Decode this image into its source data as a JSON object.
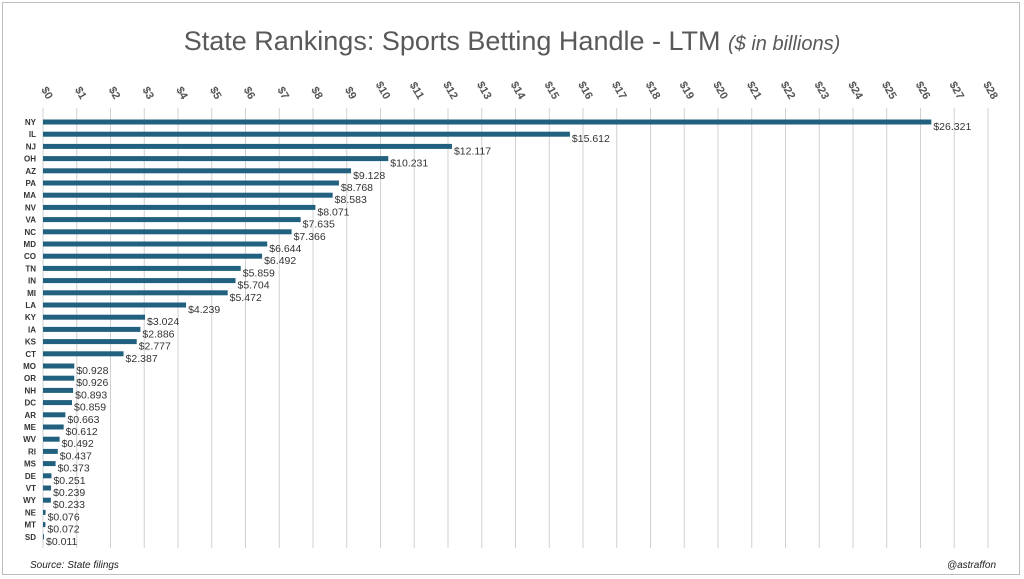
{
  "title": {
    "main": "State Rankings: Sports Betting Handle - LTM",
    "sub": "($ in billions)"
  },
  "footer": {
    "source": "Source: State filings",
    "handle": "@astraffon"
  },
  "colors": {
    "bar": "#21607e",
    "grid": "#d0d0d0"
  },
  "chart_data": {
    "type": "bar",
    "orientation": "horizontal",
    "title": "State Rankings: Sports Betting Handle - LTM ($ in billions)",
    "xlim": [
      0,
      28
    ],
    "xticks": [
      "$0",
      "$1",
      "$2",
      "$3",
      "$4",
      "$5",
      "$6",
      "$7",
      "$8",
      "$9",
      "$10",
      "$11",
      "$12",
      "$13",
      "$14",
      "$15",
      "$16",
      "$17",
      "$18",
      "$19",
      "$20",
      "$21",
      "$22",
      "$23",
      "$24",
      "$25",
      "$26",
      "$27",
      "$28"
    ],
    "xaxis_position": "top",
    "grid": true,
    "categories": [
      "NY",
      "IL",
      "NJ",
      "OH",
      "AZ",
      "PA",
      "MA",
      "NV",
      "VA",
      "NC",
      "MD",
      "CO",
      "TN",
      "IN",
      "MI",
      "LA",
      "KY",
      "IA",
      "KS",
      "CT",
      "MO",
      "OR",
      "NH",
      "DC",
      "AR",
      "ME",
      "WV",
      "RI",
      "MS",
      "DE",
      "VT",
      "WY",
      "NE",
      "MT",
      "SD"
    ],
    "values": [
      26.321,
      15.612,
      12.117,
      10.231,
      9.128,
      8.768,
      8.583,
      8.071,
      7.635,
      7.366,
      6.644,
      6.492,
      5.859,
      5.704,
      5.472,
      4.239,
      3.024,
      2.886,
      2.777,
      2.387,
      0.928,
      0.926,
      0.893,
      0.859,
      0.663,
      0.612,
      0.492,
      0.437,
      0.373,
      0.251,
      0.239,
      0.233,
      0.076,
      0.072,
      0.011
    ],
    "labels": [
      "$26.321",
      "$15.612",
      "$12.117",
      "$10.231",
      "$9.128",
      "$8.768",
      "$8.583",
      "$8.071",
      "$7.635",
      "$7.366",
      "$6.644",
      "$6.492",
      "$5.859",
      "$5.704",
      "$5.472",
      "$4.239",
      "$3.024",
      "$2.886",
      "$2.777",
      "$2.387",
      "$0.928",
      "$0.926",
      "$0.893",
      "$0.859",
      "$0.663",
      "$0.612",
      "$0.492",
      "$0.437",
      "$0.373",
      "$0.251",
      "$0.239",
      "$0.233",
      "$0.076",
      "$0.072",
      "$0.011"
    ]
  }
}
